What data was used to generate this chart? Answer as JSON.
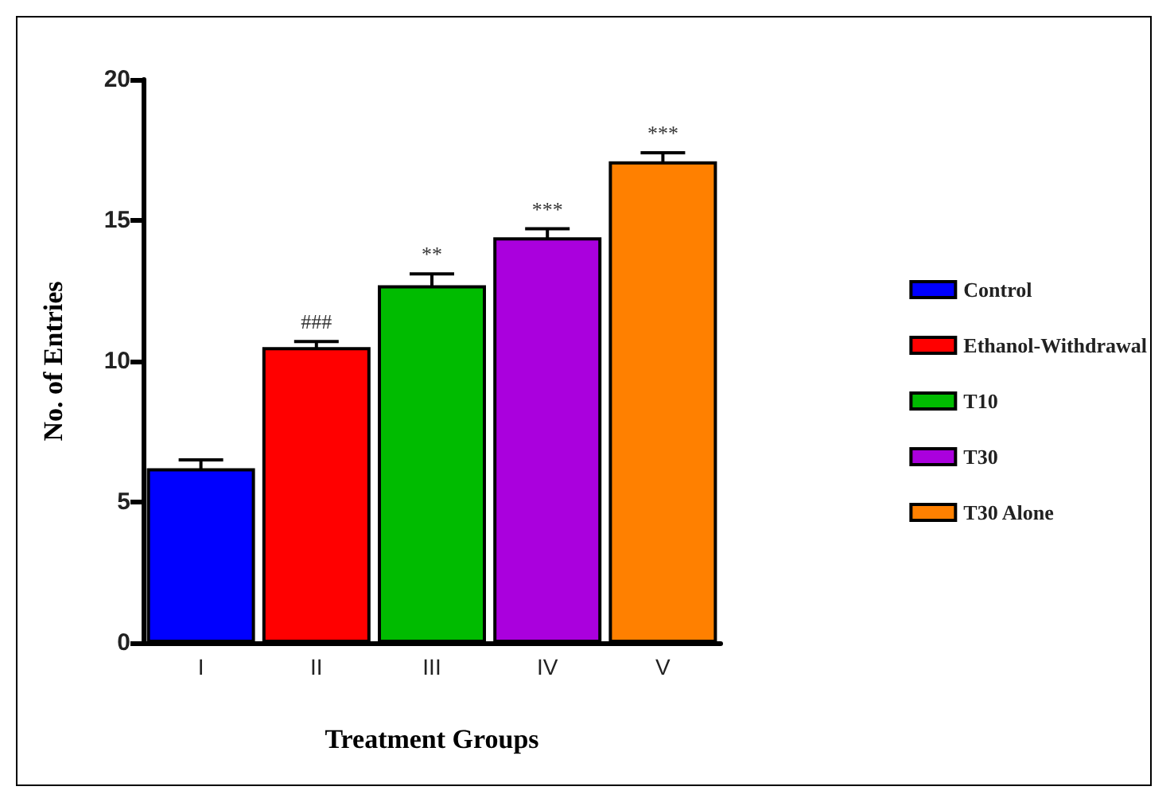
{
  "chart_data": {
    "type": "bar",
    "xlabel": "Treatment Groups",
    "ylabel": "No. of Entries",
    "categories": [
      "I",
      "II",
      "III",
      "IV",
      "V"
    ],
    "series": [
      {
        "name": "Control",
        "color": "#0000ff",
        "values": [
          6.2,
          null,
          null,
          null,
          null
        ],
        "errors": [
          0.3,
          null,
          null,
          null,
          null
        ]
      },
      {
        "name": "Ethanol-Withdrawal",
        "color": "#ff0000",
        "values": [
          null,
          10.5,
          null,
          null,
          null
        ],
        "errors": [
          null,
          0.2,
          null,
          null,
          null
        ]
      },
      {
        "name": "T10",
        "color": "#00bb00",
        "values": [
          null,
          null,
          12.7,
          null,
          null
        ],
        "errors": [
          null,
          null,
          0.4,
          null,
          null
        ]
      },
      {
        "name": "T30",
        "color": "#aa00dd",
        "values": [
          null,
          null,
          null,
          14.4,
          null
        ],
        "errors": [
          null,
          null,
          null,
          0.3,
          null
        ]
      },
      {
        "name": "T30 Alone",
        "color": "#ff8000",
        "values": [
          null,
          null,
          null,
          null,
          17.1
        ],
        "errors": [
          null,
          null,
          null,
          null,
          0.3
        ]
      }
    ],
    "annotations": [
      {
        "text": "###",
        "x": "II",
        "y": 10.7
      },
      {
        "text": "**",
        "x": "III",
        "y": 13.1
      },
      {
        "text": "***",
        "x": "IV",
        "y": 14.7
      },
      {
        "text": "***",
        "x": "V",
        "y": 17.4
      }
    ],
    "ylim": [
      0,
      20
    ],
    "yticks": [
      0,
      5,
      10,
      15,
      20
    ],
    "grid": false,
    "legend": "right"
  }
}
